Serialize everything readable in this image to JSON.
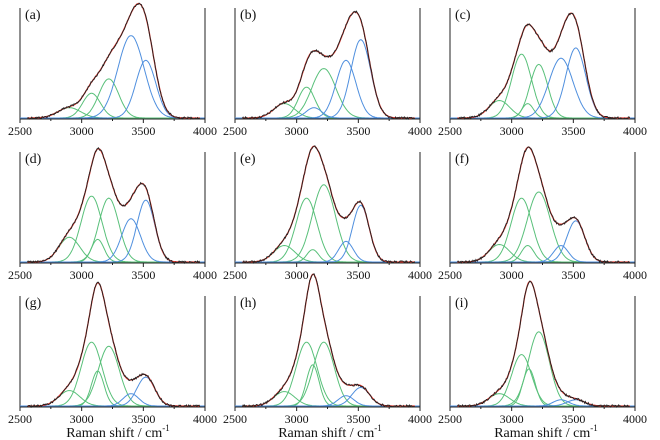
{
  "figure": {
    "xlabel_text": "Raman shift / cm",
    "xlabel_sup": "-1",
    "colors": {
      "data": "#222222",
      "fit": "#e0352b",
      "green": "#59c07a",
      "blue": "#4f8fde",
      "axis": "#222222"
    }
  },
  "chart_data": [
    {
      "type": "line",
      "label": "(a)",
      "x_ticks": [
        "2500",
        "3000",
        "3500",
        "4000"
      ],
      "xlim": [
        2500,
        4000
      ],
      "series": [
        {
          "group": "green",
          "center": 2900,
          "amplitude": 0.1,
          "fwhm": 220
        },
        {
          "group": "green",
          "center": 3080,
          "amplitude": 0.24,
          "fwhm": 170
        },
        {
          "group": "green",
          "center": 3220,
          "amplitude": 0.38,
          "fwhm": 190
        },
        {
          "group": "blue",
          "center": 3400,
          "amplitude": 0.8,
          "fwhm": 250
        },
        {
          "group": "blue",
          "center": 3520,
          "amplitude": 0.56,
          "fwhm": 190
        }
      ]
    },
    {
      "type": "line",
      "label": "(b)",
      "x_ticks": [
        "2500",
        "3000",
        "3500",
        "4000"
      ],
      "xlim": [
        2500,
        4000
      ],
      "series": [
        {
          "group": "green",
          "center": 2900,
          "amplitude": 0.14,
          "fwhm": 200
        },
        {
          "group": "green",
          "center": 3080,
          "amplitude": 0.3,
          "fwhm": 160
        },
        {
          "group": "green",
          "center": 3220,
          "amplitude": 0.48,
          "fwhm": 230
        },
        {
          "group": "blue",
          "center": 3140,
          "amplitude": 0.1,
          "fwhm": 150
        },
        {
          "group": "blue",
          "center": 3400,
          "amplitude": 0.56,
          "fwhm": 190
        },
        {
          "group": "blue",
          "center": 3520,
          "amplitude": 0.76,
          "fwhm": 190
        }
      ]
    },
    {
      "type": "line",
      "label": "(c)",
      "x_ticks": [
        "2500",
        "3000",
        "3500",
        "4000"
      ],
      "xlim": [
        2500,
        4000
      ],
      "series": [
        {
          "group": "green",
          "center": 2900,
          "amplitude": 0.17,
          "fwhm": 200
        },
        {
          "group": "green",
          "center": 3080,
          "amplitude": 0.62,
          "fwhm": 190
        },
        {
          "group": "green",
          "center": 3220,
          "amplitude": 0.52,
          "fwhm": 170
        },
        {
          "group": "green",
          "center": 3130,
          "amplitude": 0.14,
          "fwhm": 110
        },
        {
          "group": "blue",
          "center": 3400,
          "amplitude": 0.58,
          "fwhm": 230
        },
        {
          "group": "blue",
          "center": 3520,
          "amplitude": 0.68,
          "fwhm": 190
        }
      ]
    },
    {
      "type": "line",
      "label": "(d)",
      "x_ticks": [
        "2500",
        "3000",
        "3500",
        "4000"
      ],
      "xlim": [
        2500,
        4000
      ],
      "series": [
        {
          "group": "green",
          "center": 2900,
          "amplitude": 0.24,
          "fwhm": 200
        },
        {
          "group": "green",
          "center": 3080,
          "amplitude": 0.64,
          "fwhm": 200
        },
        {
          "group": "green",
          "center": 3220,
          "amplitude": 0.62,
          "fwhm": 190
        },
        {
          "group": "green",
          "center": 3130,
          "amplitude": 0.22,
          "fwhm": 120
        },
        {
          "group": "blue",
          "center": 3400,
          "amplitude": 0.42,
          "fwhm": 180
        },
        {
          "group": "blue",
          "center": 3520,
          "amplitude": 0.6,
          "fwhm": 170
        }
      ]
    },
    {
      "type": "line",
      "label": "(e)",
      "x_ticks": [
        "2500",
        "3000",
        "3500",
        "4000"
      ],
      "xlim": [
        2500,
        4000
      ],
      "series": [
        {
          "group": "green",
          "center": 2900,
          "amplitude": 0.16,
          "fwhm": 200
        },
        {
          "group": "green",
          "center": 3080,
          "amplitude": 0.62,
          "fwhm": 200
        },
        {
          "group": "green",
          "center": 3220,
          "amplitude": 0.75,
          "fwhm": 220
        },
        {
          "group": "green",
          "center": 3130,
          "amplitude": 0.12,
          "fwhm": 110
        },
        {
          "group": "blue",
          "center": 3400,
          "amplitude": 0.2,
          "fwhm": 140
        },
        {
          "group": "blue",
          "center": 3520,
          "amplitude": 0.55,
          "fwhm": 160
        }
      ]
    },
    {
      "type": "line",
      "label": "(f)",
      "x_ticks": [
        "2500",
        "3000",
        "3500",
        "4000"
      ],
      "xlim": [
        2500,
        4000
      ],
      "series": [
        {
          "group": "green",
          "center": 2900,
          "amplitude": 0.17,
          "fwhm": 200
        },
        {
          "group": "green",
          "center": 3080,
          "amplitude": 0.62,
          "fwhm": 200
        },
        {
          "group": "green",
          "center": 3220,
          "amplitude": 0.68,
          "fwhm": 220
        },
        {
          "group": "green",
          "center": 3130,
          "amplitude": 0.16,
          "fwhm": 120
        },
        {
          "group": "blue",
          "center": 3400,
          "amplitude": 0.16,
          "fwhm": 140
        },
        {
          "group": "blue",
          "center": 3520,
          "amplitude": 0.4,
          "fwhm": 170
        }
      ]
    },
    {
      "type": "line",
      "label": "(g)",
      "x_ticks": [
        "2500",
        "3000",
        "3500",
        "4000"
      ],
      "xlim": [
        2500,
        4000
      ],
      "series": [
        {
          "group": "green",
          "center": 2900,
          "amplitude": 0.15,
          "fwhm": 200
        },
        {
          "group": "green",
          "center": 3080,
          "amplitude": 0.62,
          "fwhm": 200
        },
        {
          "group": "green",
          "center": 3220,
          "amplitude": 0.58,
          "fwhm": 200
        },
        {
          "group": "green",
          "center": 3130,
          "amplitude": 0.34,
          "fwhm": 120
        },
        {
          "group": "blue",
          "center": 3400,
          "amplitude": 0.12,
          "fwhm": 150
        },
        {
          "group": "blue",
          "center": 3520,
          "amplitude": 0.28,
          "fwhm": 170
        }
      ]
    },
    {
      "type": "line",
      "label": "(h)",
      "x_ticks": [
        "2500",
        "3000",
        "3500",
        "4000"
      ],
      "xlim": [
        2500,
        4000
      ],
      "series": [
        {
          "group": "green",
          "center": 2900,
          "amplitude": 0.14,
          "fwhm": 200
        },
        {
          "group": "green",
          "center": 3080,
          "amplitude": 0.62,
          "fwhm": 200
        },
        {
          "group": "green",
          "center": 3220,
          "amplitude": 0.62,
          "fwhm": 200
        },
        {
          "group": "green",
          "center": 3130,
          "amplitude": 0.4,
          "fwhm": 120
        },
        {
          "group": "blue",
          "center": 3400,
          "amplitude": 0.1,
          "fwhm": 150
        },
        {
          "group": "blue",
          "center": 3520,
          "amplitude": 0.18,
          "fwhm": 170
        }
      ]
    },
    {
      "type": "line",
      "label": "(i)",
      "x_ticks": [
        "2500",
        "3000",
        "3500",
        "4000"
      ],
      "xlim": [
        2500,
        4000
      ],
      "series": [
        {
          "group": "green",
          "center": 2900,
          "amplitude": 0.12,
          "fwhm": 200
        },
        {
          "group": "green",
          "center": 3080,
          "amplitude": 0.5,
          "fwhm": 190
        },
        {
          "group": "green",
          "center": 3220,
          "amplitude": 0.72,
          "fwhm": 200
        },
        {
          "group": "green",
          "center": 3140,
          "amplitude": 0.36,
          "fwhm": 120
        },
        {
          "group": "blue",
          "center": 3400,
          "amplitude": 0.06,
          "fwhm": 150
        },
        {
          "group": "blue",
          "center": 3520,
          "amplitude": 0.06,
          "fwhm": 170
        }
      ]
    }
  ]
}
